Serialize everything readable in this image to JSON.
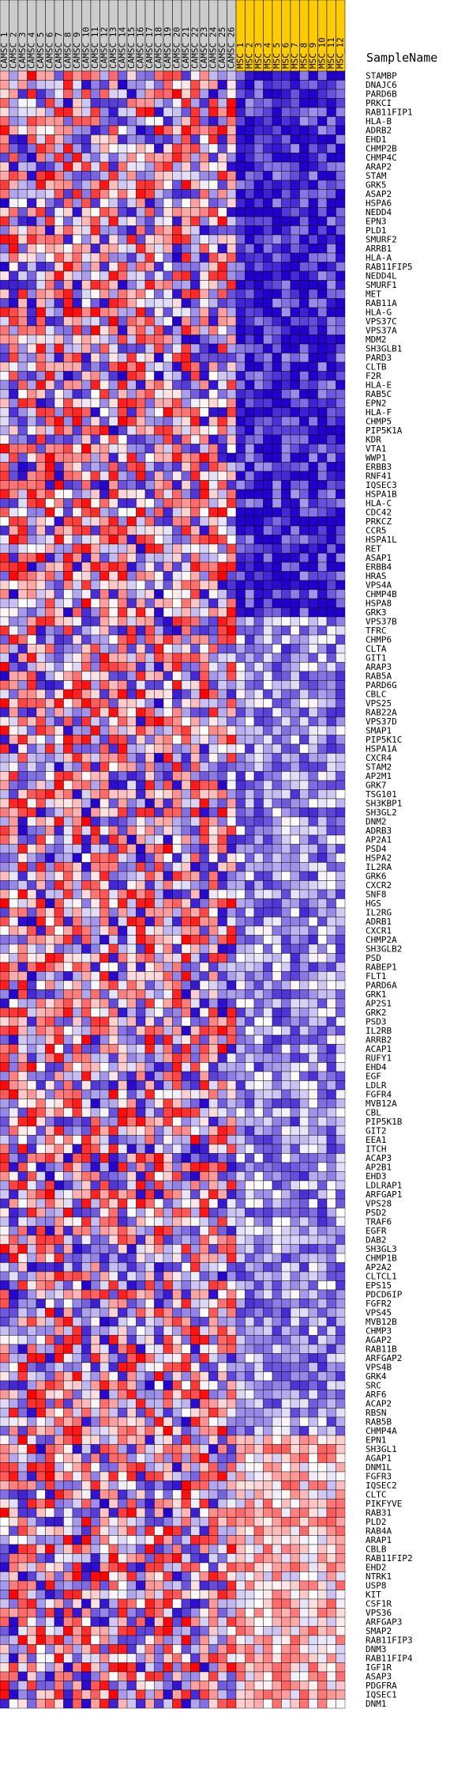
{
  "chart_data": {
    "type": "heatmap",
    "row_header": "SampleName",
    "columns": [
      {
        "name": "CAMSC_1",
        "group": "CAMSC"
      },
      {
        "name": "CAMSC_2",
        "group": "CAMSC"
      },
      {
        "name": "CAMSC_3",
        "group": "CAMSC"
      },
      {
        "name": "CAMSC_4",
        "group": "CAMSC"
      },
      {
        "name": "CAMSC_5",
        "group": "CAMSC"
      },
      {
        "name": "CAMSC_6",
        "group": "CAMSC"
      },
      {
        "name": "CAMSC_7",
        "group": "CAMSC"
      },
      {
        "name": "CAMSC_8",
        "group": "CAMSC"
      },
      {
        "name": "CAMSC_9",
        "group": "CAMSC"
      },
      {
        "name": "CAMSC_10",
        "group": "CAMSC"
      },
      {
        "name": "CAMSC_11",
        "group": "CAMSC"
      },
      {
        "name": "CAMSC_12",
        "group": "CAMSC"
      },
      {
        "name": "CAMSC_13",
        "group": "CAMSC"
      },
      {
        "name": "CAMSC_14",
        "group": "CAMSC"
      },
      {
        "name": "CAMSC_15",
        "group": "CAMSC"
      },
      {
        "name": "CAMSC_16",
        "group": "CAMSC"
      },
      {
        "name": "CAMSC_17",
        "group": "CAMSC"
      },
      {
        "name": "CAMSC_18",
        "group": "CAMSC"
      },
      {
        "name": "CAMSC_19",
        "group": "CAMSC"
      },
      {
        "name": "CAMSC_20",
        "group": "CAMSC"
      },
      {
        "name": "CAMSC_21",
        "group": "CAMSC"
      },
      {
        "name": "CAMSC_22",
        "group": "CAMSC"
      },
      {
        "name": "CAMSC_23",
        "group": "CAMSC"
      },
      {
        "name": "CAMSC_24",
        "group": "CAMSC"
      },
      {
        "name": "CAMSC_25",
        "group": "CAMSC"
      },
      {
        "name": "CAMSC_26",
        "group": "CAMSC"
      },
      {
        "name": "MSC_1",
        "group": "MSC"
      },
      {
        "name": "MSC_2",
        "group": "MSC"
      },
      {
        "name": "MSC_3",
        "group": "MSC"
      },
      {
        "name": "MSC_4",
        "group": "MSC"
      },
      {
        "name": "MSC_5",
        "group": "MSC"
      },
      {
        "name": "MSC_6",
        "group": "MSC"
      },
      {
        "name": "MSC_7",
        "group": "MSC"
      },
      {
        "name": "MSC_8",
        "group": "MSC"
      },
      {
        "name": "MSC_9",
        "group": "MSC"
      },
      {
        "name": "MSC_10",
        "group": "MSC"
      },
      {
        "name": "MSC_11",
        "group": "MSC"
      },
      {
        "name": "MSC_12",
        "group": "MSC"
      }
    ],
    "rows": [
      "STAMBP",
      "DNAJC6",
      "PARD6B",
      "PRKCI",
      "RAB11FIP1",
      "HLA-B",
      "ADRB2",
      "EHD1",
      "CHMP2B",
      "CHMP4C",
      "ARAP2",
      "STAM",
      "GRK5",
      "ASAP2",
      "HSPA6",
      "NEDD4",
      "EPN3",
      "PLD1",
      "SMURF2",
      "ARRB1",
      "HLA-A",
      "RAB11FIP5",
      "NEDD4L",
      "SMURF1",
      "MET",
      "RAB11A",
      "HLA-G",
      "VPS37C",
      "VPS37A",
      "MDM2",
      "SH3GLB1",
      "PARD3",
      "CLTB",
      "F2R",
      "HLA-E",
      "RAB5C",
      "EPN2",
      "HLA-F",
      "CHMP5",
      "PIP5K1A",
      "KDR",
      "VTA1",
      "WWP1",
      "ERBB3",
      "RNF41",
      "IQSEC3",
      "HSPA1B",
      "HLA-C",
      "CDC42",
      "PRKCZ",
      "CCR5",
      "HSPA1L",
      "RET",
      "ASAP1",
      "ERBB4",
      "HRAS",
      "VPS4A",
      "CHMP4B",
      "HSPA8",
      "GRK3",
      "VPS37B",
      "TFRC",
      "CHMP6",
      "CLTA",
      "GIT1",
      "ARAP3",
      "RAB5A",
      "PARD6G",
      "CBLC",
      "VPS25",
      "RAB22A",
      "VPS37D",
      "SMAP1",
      "PIP5K1C",
      "HSPA1A",
      "CXCR4",
      "STAM2",
      "AP2M1",
      "GRK7",
      "TSG101",
      "SH3KBP1",
      "SH3GL2",
      "DNM2",
      "ADRB3",
      "AP2A1",
      "PSD4",
      "HSPA2",
      "IL2RA",
      "GRK6",
      "CXCR2",
      "SNF8",
      "HGS",
      "IL2RG",
      "ADRB1",
      "CXCR1",
      "CHMP2A",
      "SH3GLB2",
      "PSD",
      "RABEP1",
      "FLT1",
      "PARD6A",
      "GRK1",
      "AP2S1",
      "GRK2",
      "PSD3",
      "IL2RB",
      "ARRB2",
      "ACAP1",
      "RUFY1",
      "EHD4",
      "EGF",
      "LDLR",
      "FGFR4",
      "MVB12A",
      "CBL",
      "PIP5K1B",
      "GIT2",
      "EEA1",
      "ITCH",
      "ACAP3",
      "AP2B1",
      "EHD3",
      "LDLRAP1",
      "ARFGAP1",
      "VPS28",
      "PSD2",
      "TRAF6",
      "EGFR",
      "DAB2",
      "SH3GL3",
      "CHMP1B",
      "AP2A2",
      "CLTCL1",
      "EPS15",
      "PDCD6IP",
      "FGFR2",
      "VPS45",
      "MVB12B",
      "CHMP3",
      "AGAP2",
      "RAB11B",
      "ARFGAP2",
      "VPS4B",
      "GRK4",
      "SRC",
      "ARF6",
      "ACAP2",
      "RBSN",
      "RAB5B",
      "CHMP4A",
      "EPN1",
      "SH3GL1",
      "AGAP1",
      "DNM1L",
      "FGFR3",
      "IQSEC2",
      "CLTC",
      "PIKFYVE",
      "RAB31",
      "PLD2",
      "RAB4A",
      "ARAP1",
      "CBLB",
      "RAB11FIP2",
      "EHD2",
      "NTRK1",
      "USP8",
      "KIT",
      "CSF1R",
      "VPS36",
      "ARFGAP3",
      "SMAP2",
      "RAB11FIP3",
      "DNM3",
      "RAB11FIP4",
      "IGF1R",
      "ASAP3",
      "PDGFRA",
      "IQSEC1",
      "DNM1"
    ],
    "values": [],
    "value_range": [
      -1,
      1
    ],
    "color_scale": {
      "low": "#2200cc",
      "mid": "#ffffff",
      "high": "#ff0000"
    },
    "group_colors": {
      "CAMSC": "#cccccc",
      "MSC": "#ffcc00"
    },
    "grid": true
  }
}
